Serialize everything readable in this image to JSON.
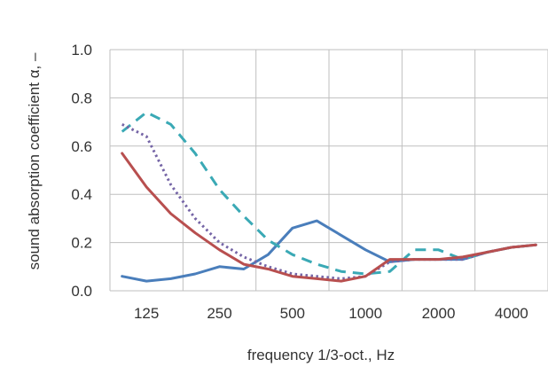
{
  "chart_data": {
    "type": "line",
    "title": "",
    "xlabel": "frequency 1/3-oct., Hz",
    "ylabel": "sound absorption coefficient α, –",
    "x": [
      100,
      125,
      160,
      200,
      250,
      315,
      400,
      500,
      630,
      800,
      1000,
      1250,
      1600,
      2000,
      2500,
      3150,
      4000,
      5000
    ],
    "x_tick_labels": [
      "125",
      "250",
      "500",
      "1000",
      "2000",
      "4000"
    ],
    "y_ticks": [
      "0.0",
      "0.2",
      "0.4",
      "0.6",
      "0.8",
      "1.0"
    ],
    "ylim": [
      0,
      1
    ],
    "grid": true,
    "legend": "none",
    "series": [
      {
        "style": "solid",
        "color": "#4a7ebb",
        "values": [
          0.06,
          0.04,
          0.05,
          0.07,
          0.1,
          0.09,
          0.15,
          0.26,
          0.29,
          0.23,
          0.17,
          0.12,
          0.13,
          0.13,
          0.13,
          0.16,
          0.18,
          0.19
        ]
      },
      {
        "style": "dashed",
        "color": "#3aa9b5",
        "values": [
          0.66,
          0.74,
          0.69,
          0.57,
          0.42,
          0.31,
          0.21,
          0.15,
          0.11,
          0.08,
          0.07,
          0.08,
          0.17,
          0.17,
          0.13,
          0.16,
          0.18,
          0.19
        ]
      },
      {
        "style": "dotted",
        "color": "#7565a6",
        "values": [
          0.69,
          0.64,
          0.44,
          0.3,
          0.2,
          0.14,
          0.1,
          0.07,
          0.06,
          0.05,
          0.06,
          0.12,
          0.13,
          0.13,
          0.13,
          0.16,
          0.18,
          0.19
        ]
      },
      {
        "style": "solid",
        "color": "#b84f4f",
        "values": [
          0.57,
          0.43,
          0.32,
          0.24,
          0.17,
          0.11,
          0.09,
          0.06,
          0.05,
          0.04,
          0.06,
          0.13,
          0.13,
          0.13,
          0.14,
          0.16,
          0.18,
          0.19
        ]
      }
    ]
  }
}
